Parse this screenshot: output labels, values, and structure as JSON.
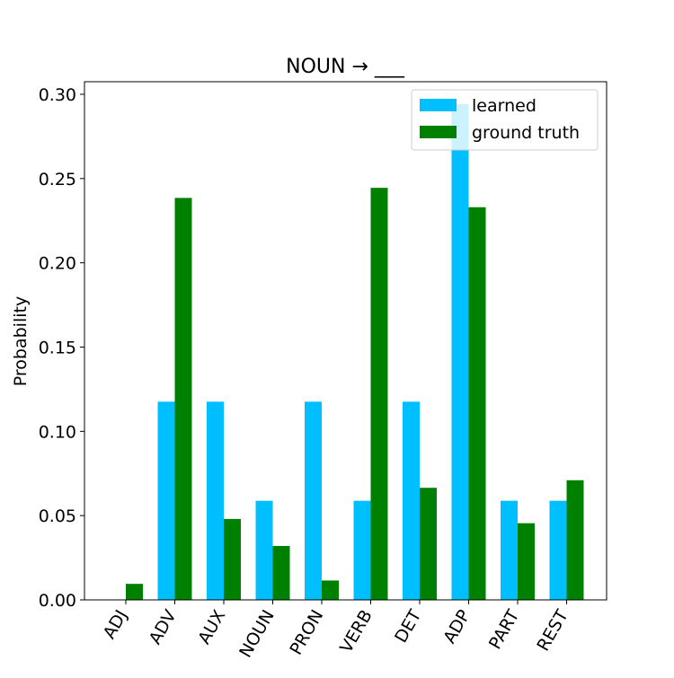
{
  "chart_data": {
    "type": "bar",
    "title": "NOUN → ___",
    "xlabel": "",
    "ylabel": "Probability",
    "categories": [
      "ADJ",
      "ADV",
      "AUX",
      "NOUN",
      "PRON",
      "VERB",
      "DET",
      "ADP",
      "PART",
      "REST"
    ],
    "series": [
      {
        "name": "learned",
        "color": "#00bfff",
        "values": [
          0.0,
          0.1176,
          0.1176,
          0.0588,
          0.1176,
          0.0588,
          0.1176,
          0.2941,
          0.0588,
          0.0588
        ]
      },
      {
        "name": "ground truth",
        "color": "#008000",
        "values": [
          0.0095,
          0.2385,
          0.048,
          0.032,
          0.0115,
          0.2445,
          0.0665,
          0.233,
          0.0455,
          0.071
        ]
      }
    ],
    "ylim": [
      0,
      0.3
    ],
    "yticks": [
      "0.00",
      "0.05",
      "0.10",
      "0.15",
      "0.20",
      "0.25",
      "0.30"
    ],
    "xtick_rotation": "45-degree",
    "legend_position": "top-right",
    "grid": false
  }
}
